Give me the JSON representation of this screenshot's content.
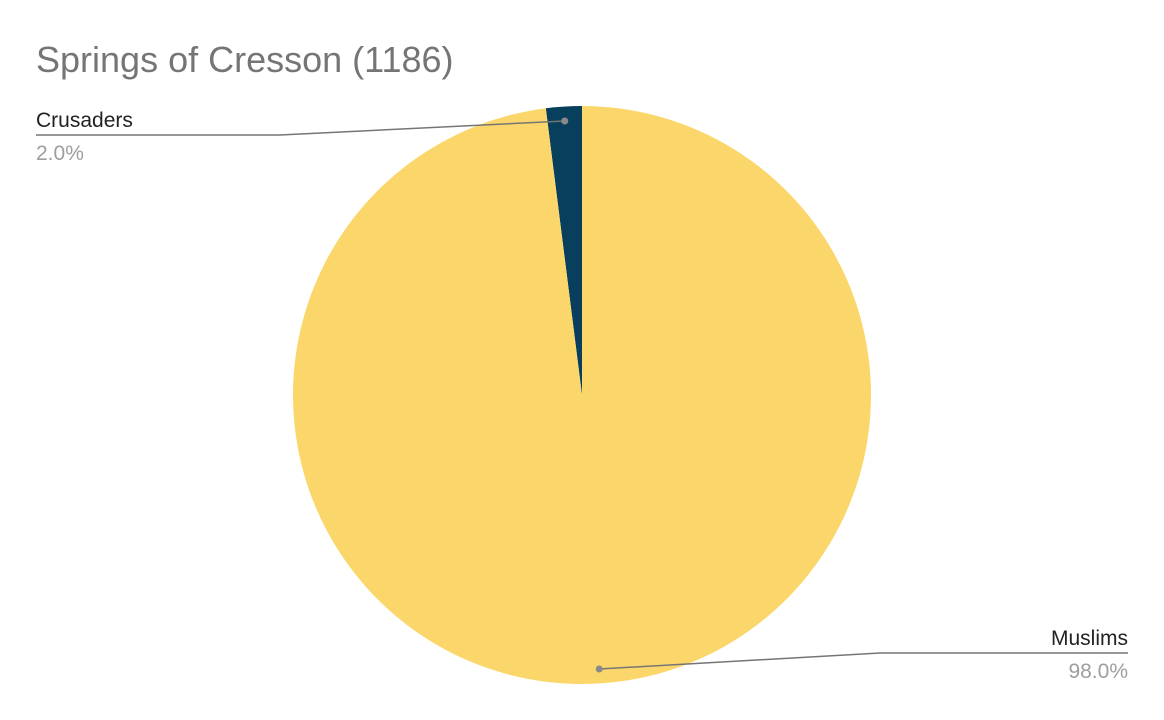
{
  "chart_data": {
    "type": "pie",
    "title": "Springs of Cresson (1186)",
    "slices": [
      {
        "label": "Crusaders",
        "value": 2.0,
        "percent_label": "2.0%",
        "color": "#073f5c"
      },
      {
        "label": "Muslims",
        "value": 98.0,
        "percent_label": "98.0%",
        "color": "#fbd76b"
      }
    ],
    "start_angle": "12 o'clock",
    "direction": "counterclockwise",
    "label_style": "outside labels with leader lines",
    "legend": "none"
  },
  "colors": {
    "title_text": "#757575",
    "label_text": "#222222",
    "percent_text": "#9e9e9e",
    "leader_line": "#757575"
  }
}
